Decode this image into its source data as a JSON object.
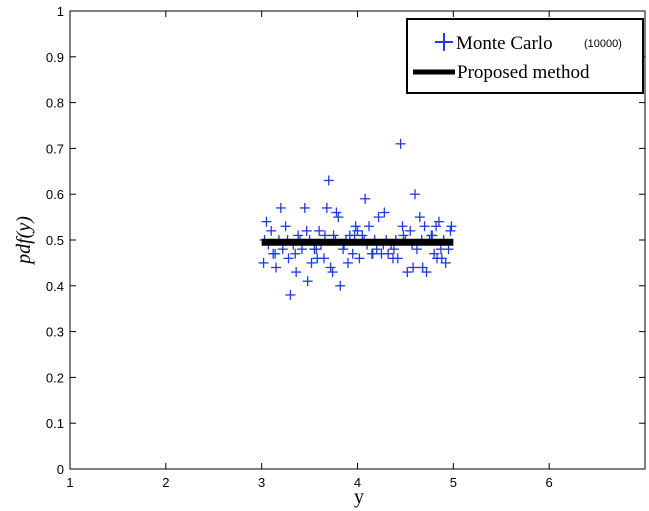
{
  "chart_data": {
    "type": "scatter",
    "title": "",
    "xlabel": "y",
    "ylabel": "pdf(y)",
    "xlim": [
      1,
      7
    ],
    "ylim": [
      0,
      1
    ],
    "xticks": [
      1,
      2,
      3,
      4,
      5,
      6
    ],
    "xtick_labels": [
      "1",
      "2",
      "3",
      "4",
      "5",
      "6"
    ],
    "yticks": [
      0,
      0.1,
      0.2,
      0.3,
      0.4,
      0.5,
      0.6,
      0.7,
      0.8,
      0.9,
      1
    ],
    "ytick_labels": [
      "0",
      "0.1",
      "0.2",
      "0.3",
      "0.4",
      "0.5",
      "0.6",
      "0.7",
      "0.8",
      "0.9",
      "1"
    ],
    "grid": false,
    "legend_position": "top-right",
    "colors": {
      "monte_carlo": "#1f3ce0",
      "proposed": "#000000"
    },
    "series": [
      {
        "name": "Monte Carlo (10000)",
        "marker": "plus",
        "x": [
          3.02,
          3.05,
          3.07,
          3.1,
          3.12,
          3.15,
          3.18,
          3.2,
          3.22,
          3.25,
          3.28,
          3.3,
          3.33,
          3.35,
          3.38,
          3.4,
          3.42,
          3.45,
          3.48,
          3.5,
          3.52,
          3.55,
          3.58,
          3.6,
          3.62,
          3.65,
          3.68,
          3.7,
          3.72,
          3.75,
          3.78,
          3.8,
          3.82,
          3.85,
          3.88,
          3.9,
          3.92,
          3.95,
          3.98,
          4.0,
          4.02,
          4.05,
          4.08,
          4.1,
          4.12,
          4.15,
          4.18,
          4.2,
          4.22,
          4.25,
          4.28,
          4.3,
          4.32,
          4.35,
          4.38,
          4.4,
          4.42,
          4.45,
          4.48,
          4.5,
          4.52,
          4.55,
          4.58,
          4.6,
          4.62,
          4.65,
          4.68,
          4.7,
          4.72,
          4.75,
          4.78,
          4.8,
          4.82,
          4.85,
          4.88,
          4.9,
          4.92,
          4.95,
          4.98,
          3.03,
          3.14,
          3.27,
          3.36,
          3.47,
          3.57,
          3.66,
          3.77,
          3.86,
          3.97,
          4.07,
          4.16,
          4.27,
          4.37,
          4.47,
          4.57,
          4.67,
          4.77,
          4.87,
          4.97,
          3.74,
          4.83
        ],
        "y": [
          0.45,
          0.54,
          0.49,
          0.52,
          0.47,
          0.44,
          0.5,
          0.57,
          0.48,
          0.53,
          0.46,
          0.38,
          0.49,
          0.47,
          0.51,
          0.5,
          0.48,
          0.57,
          0.41,
          0.5,
          0.45,
          0.48,
          0.46,
          0.52,
          0.49,
          0.46,
          0.57,
          0.63,
          0.44,
          0.51,
          0.56,
          0.55,
          0.4,
          0.48,
          0.5,
          0.45,
          0.51,
          0.47,
          0.53,
          0.52,
          0.46,
          0.51,
          0.59,
          0.49,
          0.53,
          0.47,
          0.5,
          0.48,
          0.55,
          0.47,
          0.56,
          0.5,
          0.47,
          0.49,
          0.48,
          0.5,
          0.46,
          0.71,
          0.51,
          0.5,
          0.43,
          0.52,
          0.44,
          0.6,
          0.48,
          0.55,
          0.44,
          0.53,
          0.43,
          0.5,
          0.51,
          0.47,
          0.53,
          0.54,
          0.46,
          0.5,
          0.45,
          0.48,
          0.53,
          0.5,
          0.47,
          0.5,
          0.43,
          0.52,
          0.48,
          0.51,
          0.5,
          0.49,
          0.51,
          0.5,
          0.47,
          0.49,
          0.46,
          0.53,
          0.49,
          0.5,
          0.51,
          0.48,
          0.52,
          0.43,
          0.46
        ]
      },
      {
        "name": "Proposed method",
        "type": "line",
        "x": [
          3,
          5
        ],
        "y": [
          0.495,
          0.495
        ]
      }
    ],
    "legend": {
      "mc_label": "Monte Carlo",
      "mc_sublabel": "(10000)",
      "proposed_label": "Proposed method"
    }
  }
}
